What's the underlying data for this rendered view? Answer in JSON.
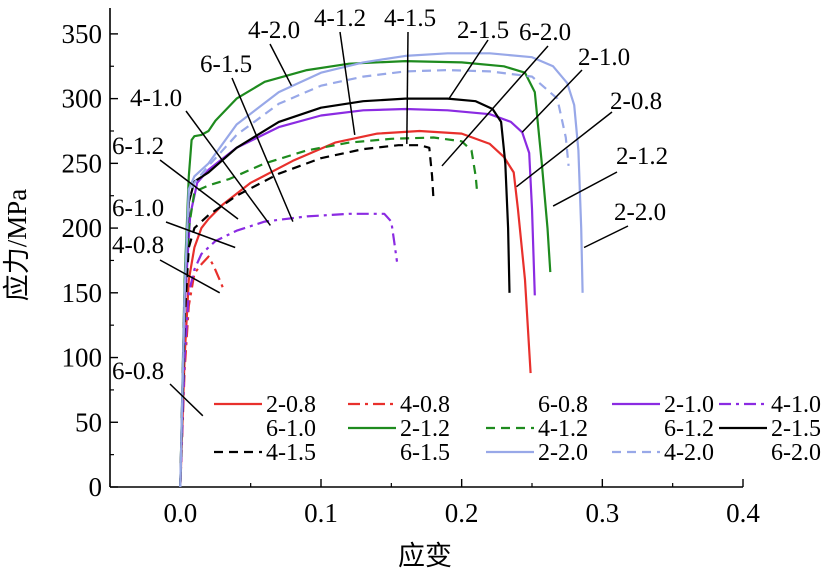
{
  "chart_data": {
    "type": "line",
    "title": "",
    "xlabel": "应变",
    "ylabel": "应力/MPa",
    "xlim": [
      -0.05,
      0.4
    ],
    "ylim": [
      0,
      370
    ],
    "xticks": [
      0.0,
      0.1,
      0.2,
      0.3,
      0.4
    ],
    "xtick_labels": [
      "0.0",
      "0.1",
      "0.2",
      "0.3",
      "0.4"
    ],
    "yticks": [
      0,
      50,
      100,
      150,
      200,
      250,
      300,
      350
    ],
    "ytick_labels": [
      "0",
      "50",
      "100",
      "150",
      "200",
      "250",
      "300",
      "350"
    ],
    "grid": false,
    "legend_placement": "bottom-right inside plot",
    "legend_order": [
      "2-0.8",
      "4-0.8",
      "6-0.8",
      "2-1.0",
      "4-1.0",
      "6-1.0",
      "2-1.2",
      "4-1.2",
      "6-1.2",
      "2-1.5",
      "4-1.5",
      "6-1.5",
      "2-2.0",
      "4-2.0",
      "6-2.0"
    ],
    "series": [
      {
        "name": "2-0.8",
        "color": "#e8302c",
        "dash": "solid",
        "points": [
          [
            0.0,
            0
          ],
          [
            0.003,
            100
          ],
          [
            0.006,
            160
          ],
          [
            0.01,
            185
          ],
          [
            0.015,
            200
          ],
          [
            0.02,
            207
          ],
          [
            0.03,
            218
          ],
          [
            0.05,
            235
          ],
          [
            0.08,
            252
          ],
          [
            0.11,
            266
          ],
          [
            0.14,
            273
          ],
          [
            0.17,
            275
          ],
          [
            0.2,
            273
          ],
          [
            0.22,
            265
          ],
          [
            0.23,
            255
          ],
          [
            0.237,
            243
          ],
          [
            0.24,
            215
          ],
          [
            0.245,
            160
          ],
          [
            0.249,
            88
          ]
        ]
      },
      {
        "name": "4-0.8",
        "color": "#e8302c",
        "dash": "dashdot",
        "points": [
          [
            0.0,
            0
          ],
          [
            0.003,
            90
          ],
          [
            0.006,
            140
          ],
          [
            0.01,
            165
          ],
          [
            0.015,
            172
          ],
          [
            0.02,
            178
          ],
          [
            0.024,
            170
          ],
          [
            0.028,
            160
          ],
          [
            0.031,
            152
          ]
        ]
      },
      {
        "name": "6-0.8",
        "color": "#000000",
        "dash": "none",
        "points": []
      },
      {
        "name": "2-1.0",
        "color": "#8b2be2",
        "dash": "solid",
        "points": [
          [
            0.0,
            0
          ],
          [
            0.003,
            140
          ],
          [
            0.007,
            210
          ],
          [
            0.012,
            235
          ],
          [
            0.02,
            245
          ],
          [
            0.04,
            262
          ],
          [
            0.07,
            278
          ],
          [
            0.1,
            287
          ],
          [
            0.13,
            291
          ],
          [
            0.16,
            292
          ],
          [
            0.19,
            291
          ],
          [
            0.22,
            288
          ],
          [
            0.235,
            282
          ],
          [
            0.243,
            274
          ],
          [
            0.248,
            258
          ],
          [
            0.25,
            215
          ],
          [
            0.252,
            148
          ]
        ]
      },
      {
        "name": "4-1.0",
        "color": "#8b2be2",
        "dash": "dashdot",
        "points": [
          [
            0.0,
            0
          ],
          [
            0.003,
            100
          ],
          [
            0.006,
            150
          ],
          [
            0.01,
            168
          ],
          [
            0.015,
            180
          ],
          [
            0.025,
            190
          ],
          [
            0.04,
            198
          ],
          [
            0.06,
            205
          ],
          [
            0.09,
            209
          ],
          [
            0.12,
            211
          ],
          [
            0.145,
            211
          ],
          [
            0.15,
            205
          ],
          [
            0.152,
            190
          ],
          [
            0.154,
            174
          ]
        ]
      },
      {
        "name": "6-1.0",
        "color": "#000000",
        "dash": "none",
        "points": []
      },
      {
        "name": "2-1.2",
        "color": "#1e8b1e",
        "dash": "solid",
        "points": [
          [
            0.0,
            0
          ],
          [
            0.003,
            160
          ],
          [
            0.006,
            240
          ],
          [
            0.008,
            268
          ],
          [
            0.01,
            271
          ],
          [
            0.015,
            272
          ],
          [
            0.02,
            275
          ],
          [
            0.025,
            283
          ],
          [
            0.04,
            300
          ],
          [
            0.06,
            313
          ],
          [
            0.09,
            322
          ],
          [
            0.12,
            327
          ],
          [
            0.16,
            329
          ],
          [
            0.2,
            328
          ],
          [
            0.23,
            325
          ],
          [
            0.245,
            320
          ],
          [
            0.252,
            305
          ],
          [
            0.257,
            250
          ],
          [
            0.261,
            200
          ],
          [
            0.263,
            166
          ]
        ]
      },
      {
        "name": "4-1.2",
        "color": "#1e8b1e",
        "dash": "dashed",
        "points": [
          [
            0.0,
            0
          ],
          [
            0.003,
            130
          ],
          [
            0.006,
            200
          ],
          [
            0.01,
            228
          ],
          [
            0.02,
            233
          ],
          [
            0.035,
            238
          ],
          [
            0.06,
            250
          ],
          [
            0.09,
            260
          ],
          [
            0.12,
            266
          ],
          [
            0.15,
            269
          ],
          [
            0.18,
            270
          ],
          [
            0.2,
            267
          ],
          [
            0.207,
            260
          ],
          [
            0.21,
            240
          ],
          [
            0.211,
            228
          ]
        ]
      },
      {
        "name": "6-1.2",
        "color": "#000000",
        "dash": "none",
        "points": []
      },
      {
        "name": "2-1.5",
        "color": "#000000",
        "dash": "solid",
        "points": [
          [
            0.0,
            0
          ],
          [
            0.003,
            150
          ],
          [
            0.006,
            220
          ],
          [
            0.01,
            236
          ],
          [
            0.02,
            243
          ],
          [
            0.04,
            262
          ],
          [
            0.07,
            282
          ],
          [
            0.1,
            293
          ],
          [
            0.13,
            298
          ],
          [
            0.16,
            300
          ],
          [
            0.19,
            300
          ],
          [
            0.21,
            298
          ],
          [
            0.222,
            292
          ],
          [
            0.228,
            282
          ],
          [
            0.231,
            250
          ],
          [
            0.233,
            200
          ],
          [
            0.234,
            150
          ]
        ]
      },
      {
        "name": "4-1.5",
        "color": "#000000",
        "dash": "dashed",
        "points": [
          [
            0.0,
            0
          ],
          [
            0.003,
            130
          ],
          [
            0.006,
            185
          ],
          [
            0.01,
            200
          ],
          [
            0.02,
            210
          ],
          [
            0.04,
            225
          ],
          [
            0.07,
            242
          ],
          [
            0.1,
            254
          ],
          [
            0.13,
            261
          ],
          [
            0.155,
            264
          ],
          [
            0.17,
            264
          ],
          [
            0.177,
            262
          ],
          [
            0.179,
            240
          ],
          [
            0.18,
            222
          ]
        ]
      },
      {
        "name": "6-1.5",
        "color": "#000000",
        "dash": "none",
        "points": []
      },
      {
        "name": "2-2.0",
        "color": "#98a8e8",
        "dash": "solid",
        "points": [
          [
            0.0,
            0
          ],
          [
            0.003,
            150
          ],
          [
            0.006,
            230
          ],
          [
            0.01,
            240
          ],
          [
            0.02,
            250
          ],
          [
            0.04,
            280
          ],
          [
            0.07,
            305
          ],
          [
            0.1,
            320
          ],
          [
            0.13,
            328
          ],
          [
            0.16,
            333
          ],
          [
            0.19,
            335
          ],
          [
            0.22,
            335
          ],
          [
            0.25,
            332
          ],
          [
            0.265,
            325
          ],
          [
            0.275,
            312
          ],
          [
            0.28,
            295
          ],
          [
            0.283,
            260
          ],
          [
            0.285,
            200
          ],
          [
            0.286,
            150
          ]
        ]
      },
      {
        "name": "4-2.0",
        "color": "#98a8e8",
        "dash": "dashed",
        "points": [
          [
            0.0,
            0
          ],
          [
            0.003,
            150
          ],
          [
            0.006,
            225
          ],
          [
            0.01,
            235
          ],
          [
            0.02,
            248
          ],
          [
            0.04,
            272
          ],
          [
            0.07,
            296
          ],
          [
            0.1,
            310
          ],
          [
            0.13,
            317
          ],
          [
            0.16,
            321
          ],
          [
            0.19,
            322
          ],
          [
            0.22,
            321
          ],
          [
            0.25,
            317
          ],
          [
            0.268,
            300
          ],
          [
            0.274,
            270
          ],
          [
            0.276,
            248
          ]
        ]
      },
      {
        "name": "6-2.0",
        "color": "#000000",
        "dash": "none",
        "points": []
      }
    ],
    "annotations": [
      {
        "text": "2-0.8",
        "point": [
          0.239,
          232
        ]
      },
      {
        "text": "4-0.8",
        "point": [
          0.028,
          150
        ]
      },
      {
        "text": "6-0.8",
        "point": [
          0.016,
          55
        ]
      },
      {
        "text": "2-1.0",
        "point": [
          0.243,
          274
        ]
      },
      {
        "text": "4-1.0",
        "point": [
          0.064,
          202
        ]
      },
      {
        "text": "6-1.0",
        "point": [
          0.039,
          185
        ]
      },
      {
        "text": "2-1.2",
        "point": [
          0.265,
          217
        ]
      },
      {
        "text": "4-1.2",
        "point": [
          0.124,
          272
        ]
      },
      {
        "text": "6-1.2",
        "point": [
          0.041,
          207
        ]
      },
      {
        "text": "2-1.5",
        "point": [
          0.191,
          300
        ]
      },
      {
        "text": "4-1.5",
        "point": [
          0.161,
          265
        ]
      },
      {
        "text": "6-1.5",
        "point": [
          0.08,
          205
        ]
      },
      {
        "text": "2-2.0",
        "point": [
          0.287,
          185
        ]
      },
      {
        "text": "4-2.0",
        "point": [
          0.079,
          310
        ]
      },
      {
        "text": "6-2.0",
        "point": [
          0.186,
          248
        ]
      }
    ]
  }
}
